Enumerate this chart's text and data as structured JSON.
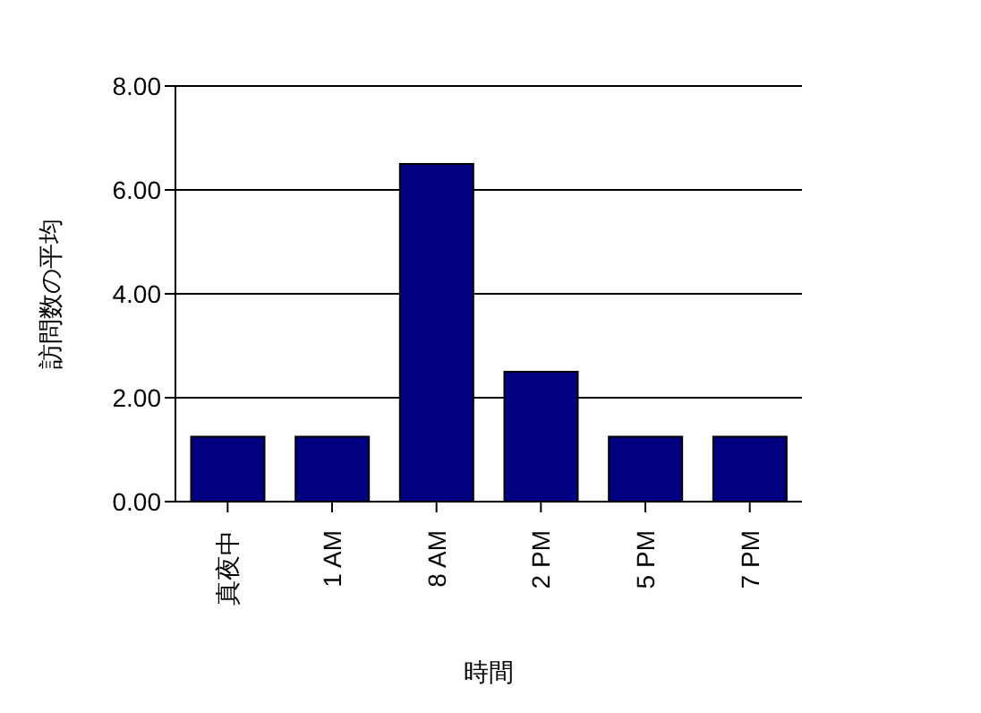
{
  "chart_data": {
    "type": "bar",
    "xlabel": "時間",
    "ylabel": "訪問数の平均",
    "categories": [
      "真夜中",
      "1 AM",
      "8 AM",
      "2 PM",
      "5 PM",
      "7 PM"
    ],
    "values": [
      1.25,
      1.25,
      6.5,
      2.5,
      1.25,
      1.25
    ],
    "color": "#000080",
    "ylim": [
      0,
      8
    ],
    "yticks": [
      {
        "value": 0,
        "label": "0.00"
      },
      {
        "value": 2,
        "label": "2.00"
      },
      {
        "value": 4,
        "label": "4.00"
      },
      {
        "value": 6,
        "label": "6.00"
      },
      {
        "value": 8,
        "label": "8.00"
      }
    ],
    "grid": "y"
  }
}
